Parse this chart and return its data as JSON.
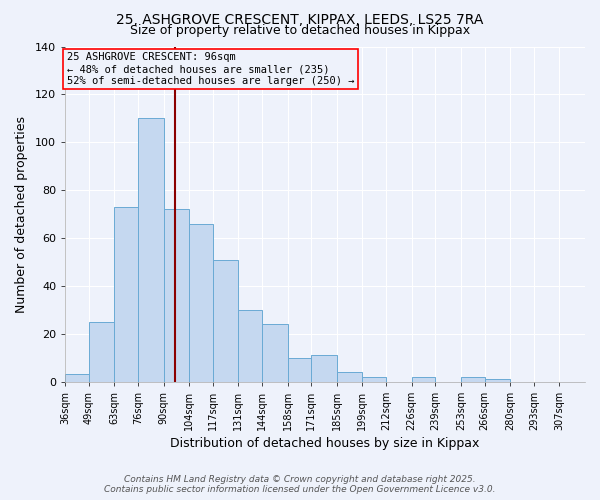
{
  "title": "25, ASHGROVE CRESCENT, KIPPAX, LEEDS, LS25 7RA",
  "subtitle": "Size of property relative to detached houses in Kippax",
  "xlabel": "Distribution of detached houses by size in Kippax",
  "ylabel": "Number of detached properties",
  "bar_values": [
    3,
    25,
    73,
    110,
    72,
    66,
    51,
    30,
    24,
    10,
    11,
    4,
    2,
    0,
    2,
    0,
    2,
    1,
    0,
    0,
    0
  ],
  "categories": [
    "36sqm",
    "49sqm",
    "63sqm",
    "76sqm",
    "90sqm",
    "104sqm",
    "117sqm",
    "131sqm",
    "144sqm",
    "158sqm",
    "171sqm",
    "185sqm",
    "199sqm",
    "212sqm",
    "226sqm",
    "239sqm",
    "253sqm",
    "266sqm",
    "280sqm",
    "293sqm",
    "307sqm"
  ],
  "bar_color": "#c5d8f0",
  "bar_edge_color": "#6aaad4",
  "background_color": "#eef2fb",
  "grid_color": "#ffffff",
  "ylim": [
    0,
    140
  ],
  "yticks": [
    0,
    20,
    40,
    60,
    80,
    100,
    120,
    140
  ],
  "vline_x_idx": 4,
  "vline_color": "#8b0000",
  "annotation_title": "25 ASHGROVE CRESCENT: 96sqm",
  "annotation_line1": "← 48% of detached houses are smaller (235)",
  "annotation_line2": "52% of semi-detached houses are larger (250) →",
  "footer1": "Contains HM Land Registry data © Crown copyright and database right 2025.",
  "footer2": "Contains public sector information licensed under the Open Government Licence v3.0.",
  "bin_edges": [
    36,
    49,
    63,
    76,
    90,
    104,
    117,
    131,
    144,
    158,
    171,
    185,
    199,
    212,
    226,
    239,
    253,
    266,
    280,
    293,
    307,
    321
  ]
}
